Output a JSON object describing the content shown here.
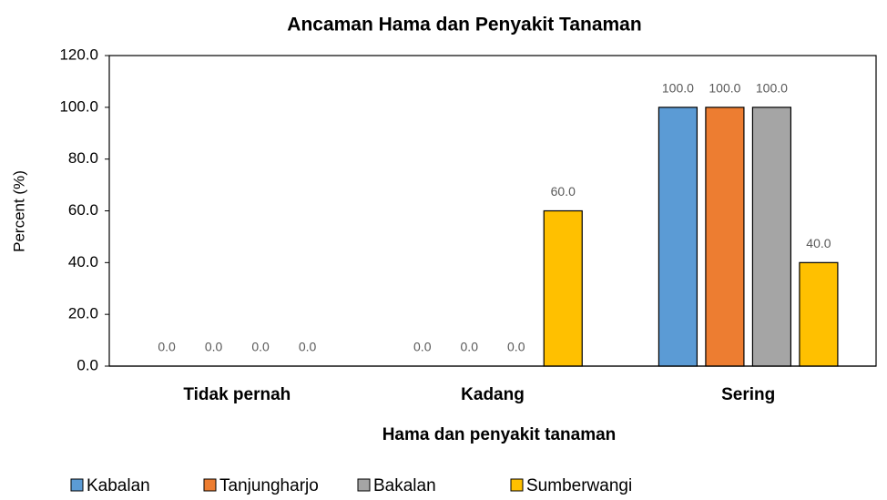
{
  "chart_data": {
    "type": "bar",
    "title": "Ancaman Hama dan Penyakit Tanaman",
    "xlabel": "Hama dan penyakit tanaman",
    "ylabel": "Percent (%)",
    "categories": [
      "Tidak pernah",
      "Kadang",
      "Sering"
    ],
    "series": [
      {
        "name": "Kabalan",
        "color": "#5b9bd5",
        "values": [
          0,
          0,
          100
        ],
        "value_labels": [
          "0.0",
          "0.0",
          "100.0"
        ]
      },
      {
        "name": "Tanjungharjo",
        "color": "#ed7d31",
        "values": [
          0,
          0,
          100
        ],
        "value_labels": [
          "0.0",
          "0.0",
          "100.0"
        ]
      },
      {
        "name": "Bakalan",
        "color": "#a5a5a5",
        "values": [
          0,
          0,
          100
        ],
        "value_labels": [
          "0.0",
          "0.0",
          "100.0"
        ]
      },
      {
        "name": "Sumberwangi",
        "color": "#ffc000",
        "values": [
          0,
          60,
          40
        ],
        "value_labels": [
          "0.0",
          "60.0",
          "40.0"
        ]
      }
    ],
    "ylim": [
      0,
      120
    ],
    "yticks": [
      {
        "value": 0,
        "label": "0.0"
      },
      {
        "value": 20,
        "label": "20.0"
      },
      {
        "value": 40,
        "label": "40.0"
      },
      {
        "value": 60,
        "label": "60.0"
      },
      {
        "value": 80,
        "label": "80.0"
      },
      {
        "value": 100,
        "label": "100.0"
      },
      {
        "value": 120,
        "label": "120.0"
      }
    ],
    "grid": false,
    "legend": "bottom"
  }
}
